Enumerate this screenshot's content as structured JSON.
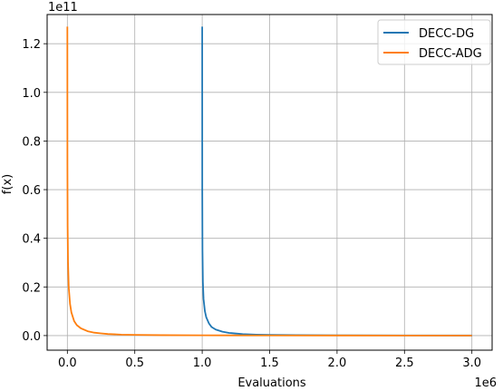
{
  "chart_data": {
    "type": "line",
    "xlabel": "Evaluations",
    "ylabel": "f(x)",
    "x_offset_label": "1e6",
    "y_offset_label": "1e11",
    "xlim": [
      -0.15,
      3.15
    ],
    "ylim": [
      -0.06,
      1.32
    ],
    "x_ticks": [
      0.0,
      0.5,
      1.0,
      1.5,
      2.0,
      2.5,
      3.0
    ],
    "x_tick_labels": [
      "0.0",
      "0.5",
      "1.0",
      "1.5",
      "2.0",
      "2.5",
      "3.0"
    ],
    "y_ticks": [
      0.0,
      0.2,
      0.4,
      0.6,
      0.8,
      1.0,
      1.2
    ],
    "y_tick_labels": [
      "0.0",
      "0.2",
      "0.4",
      "0.6",
      "0.8",
      "1.0",
      "1.2"
    ],
    "grid": true,
    "legend_position": "top-right",
    "series": [
      {
        "name": "DECC-DG",
        "color": "#1f77b4",
        "x": [
          1.0,
          1.0005,
          1.002,
          1.005,
          1.01,
          1.02,
          1.03,
          1.05,
          1.07,
          1.1,
          1.15,
          1.2,
          1.3,
          1.4,
          1.5,
          1.7,
          2.0,
          2.5,
          3.0
        ],
        "y": [
          1.27,
          0.6,
          0.35,
          0.22,
          0.15,
          0.1,
          0.075,
          0.05,
          0.035,
          0.025,
          0.016,
          0.011,
          0.006,
          0.004,
          0.003,
          0.0018,
          0.001,
          0.0005,
          0.0003
        ]
      },
      {
        "name": "DECC-ADG",
        "color": "#ff7f0e",
        "x": [
          0.0,
          0.0005,
          0.002,
          0.005,
          0.01,
          0.02,
          0.03,
          0.05,
          0.07,
          0.1,
          0.15,
          0.2,
          0.25,
          0.3,
          0.4,
          0.5,
          0.7,
          1.0,
          1.5,
          2.0,
          2.5,
          3.0
        ],
        "y": [
          1.27,
          0.7,
          0.45,
          0.3,
          0.2,
          0.13,
          0.095,
          0.06,
          0.043,
          0.03,
          0.018,
          0.012,
          0.009,
          0.0065,
          0.004,
          0.003,
          0.0018,
          0.001,
          0.0005,
          0.0003,
          0.0002,
          0.0001
        ]
      }
    ]
  }
}
